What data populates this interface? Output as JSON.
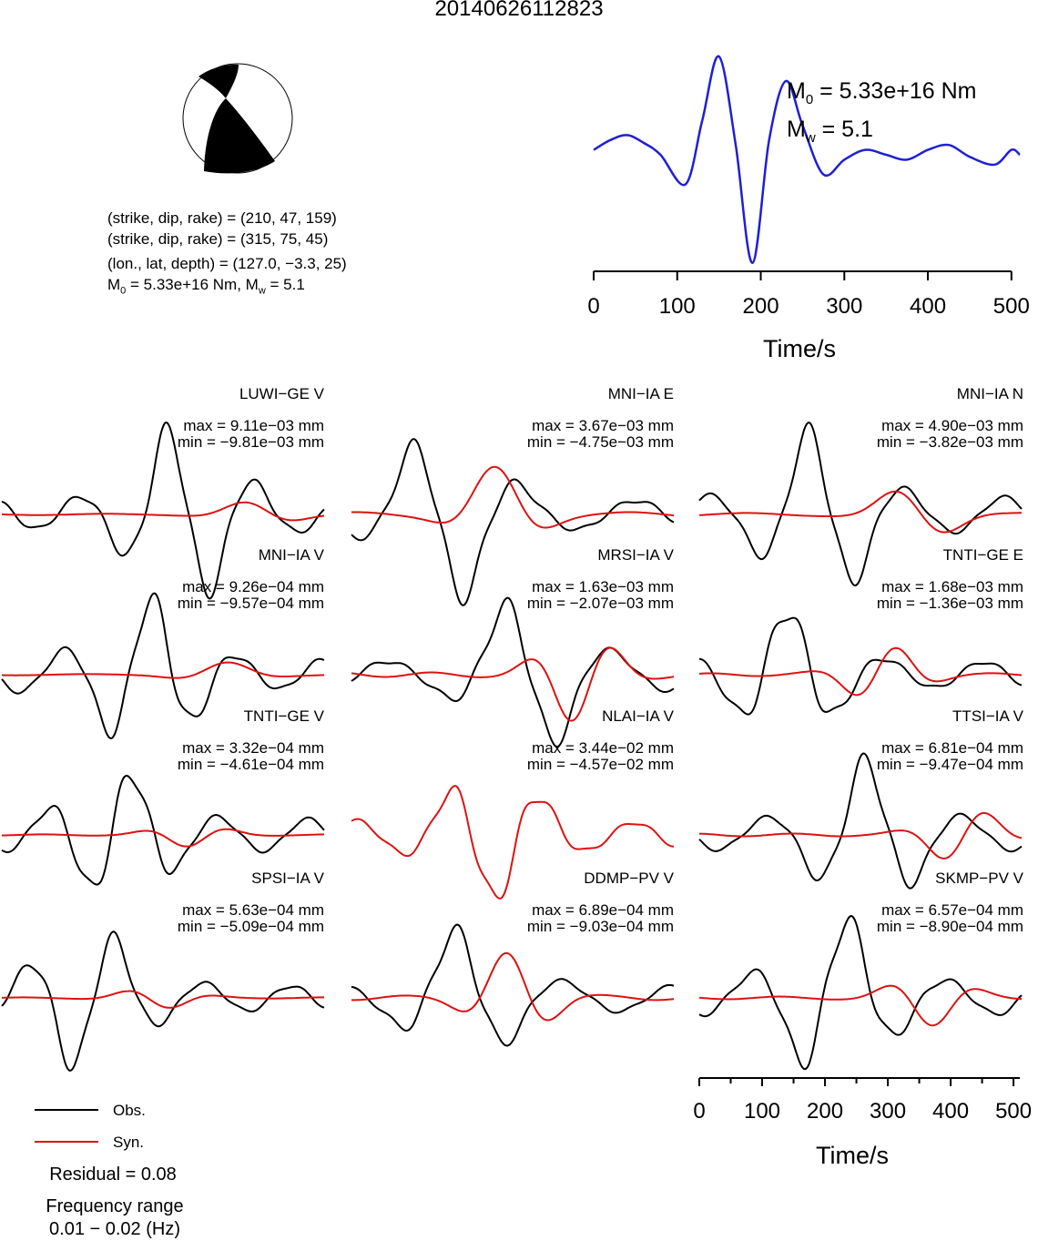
{
  "title": "20140626112823",
  "focal": {
    "sdr1": "(strike, dip, rake) = (210, 47, 159)",
    "sdr2": "(strike, dip, rake) = (315, 75, 45)",
    "loc": "(lon., lat, depth) = (127.0, −3.3, 25)",
    "moment_line": {
      "m0_prefix": "M",
      "m0_sub": "0",
      "m0_value": " = 5.33e+16 Nm, M",
      "mw_sub": "w",
      "mw_value": " = 5.1"
    }
  },
  "stf": {
    "m0": {
      "prefix": "M",
      "sub": "0",
      "value": " = 5.33e+16 Nm"
    },
    "mw": {
      "prefix": "M",
      "sub": "w",
      "value": " = 5.1"
    },
    "xlabel": "Time/s",
    "ticks": [
      "0",
      "100",
      "200",
      "300",
      "400",
      "500"
    ],
    "color": "#1f1fd6"
  },
  "traces_axis": {
    "xlabel": "Time/s",
    "ticks": [
      "0",
      "100",
      "200",
      "300",
      "400",
      "500"
    ]
  },
  "stations": [
    {
      "name": "LUWI−GE V",
      "max": "max = 9.11e−03 mm",
      "min": "min = −9.81e−03 mm"
    },
    {
      "name": "MNI−IA E",
      "max": "max = 3.67e−03 mm",
      "min": "min = −4.75e−03 mm"
    },
    {
      "name": "MNI−IA N",
      "max": "max = 4.90e−03 mm",
      "min": "min = −3.82e−03 mm"
    },
    {
      "name": "MNI−IA V",
      "max": "max = 9.26e−04 mm",
      "min": "min = −9.57e−04 mm"
    },
    {
      "name": "MRSI−IA V",
      "max": "max = 1.63e−03 mm",
      "min": "min = −2.07e−03 mm"
    },
    {
      "name": "TNTI−GE E",
      "max": "max = 1.68e−03 mm",
      "min": "min = −1.36e−03 mm"
    },
    {
      "name": "TNTI−GE V",
      "max": "max = 3.32e−04 mm",
      "min": "min = −4.61e−04 mm"
    },
    {
      "name": "NLAI−IA V",
      "max": "max = 3.44e−02 mm",
      "min": "min = −4.57e−02 mm"
    },
    {
      "name": "TTSI−IA V",
      "max": "max = 6.81e−04 mm",
      "min": "min = −9.47e−04 mm"
    },
    {
      "name": "SPSI−IA V",
      "max": "max = 5.63e−04 mm",
      "min": "min = −5.09e−04 mm"
    },
    {
      "name": "DDMP−PV V",
      "max": "max = 6.89e−04 mm",
      "min": "min = −9.03e−04 mm"
    },
    {
      "name": "SKMP−PV V",
      "max": "max = 6.57e−04 mm",
      "min": "min = −8.90e−04 mm"
    }
  ],
  "legend": {
    "obs": "Obs.",
    "obs_color": "#000000",
    "syn": "Syn.",
    "syn_color": "#dd1111"
  },
  "residual": "Residual = 0.08",
  "freq_label": "Frequency range",
  "freq_value": "0.01 − 0.02 (Hz)",
  "chart_data": {
    "type": "line",
    "stf_series": {
      "x": [
        0,
        20,
        40,
        60,
        80,
        110,
        130,
        150,
        170,
        190,
        210,
        230,
        250,
        275,
        300,
        325,
        350,
        375,
        400,
        425,
        450,
        480,
        500,
        510
      ],
      "y": [
        0.05,
        0.15,
        0.2,
        0.12,
        0.0,
        -0.3,
        0.35,
        1.0,
        0.1,
        -1.1,
        0.15,
        0.75,
        0.3,
        -0.2,
        -0.05,
        0.05,
        0.0,
        -0.05,
        0.05,
        0.1,
        -0.02,
        -0.1,
        0.05,
        0.0
      ]
    },
    "xlim": [
      0,
      510
    ]
  }
}
